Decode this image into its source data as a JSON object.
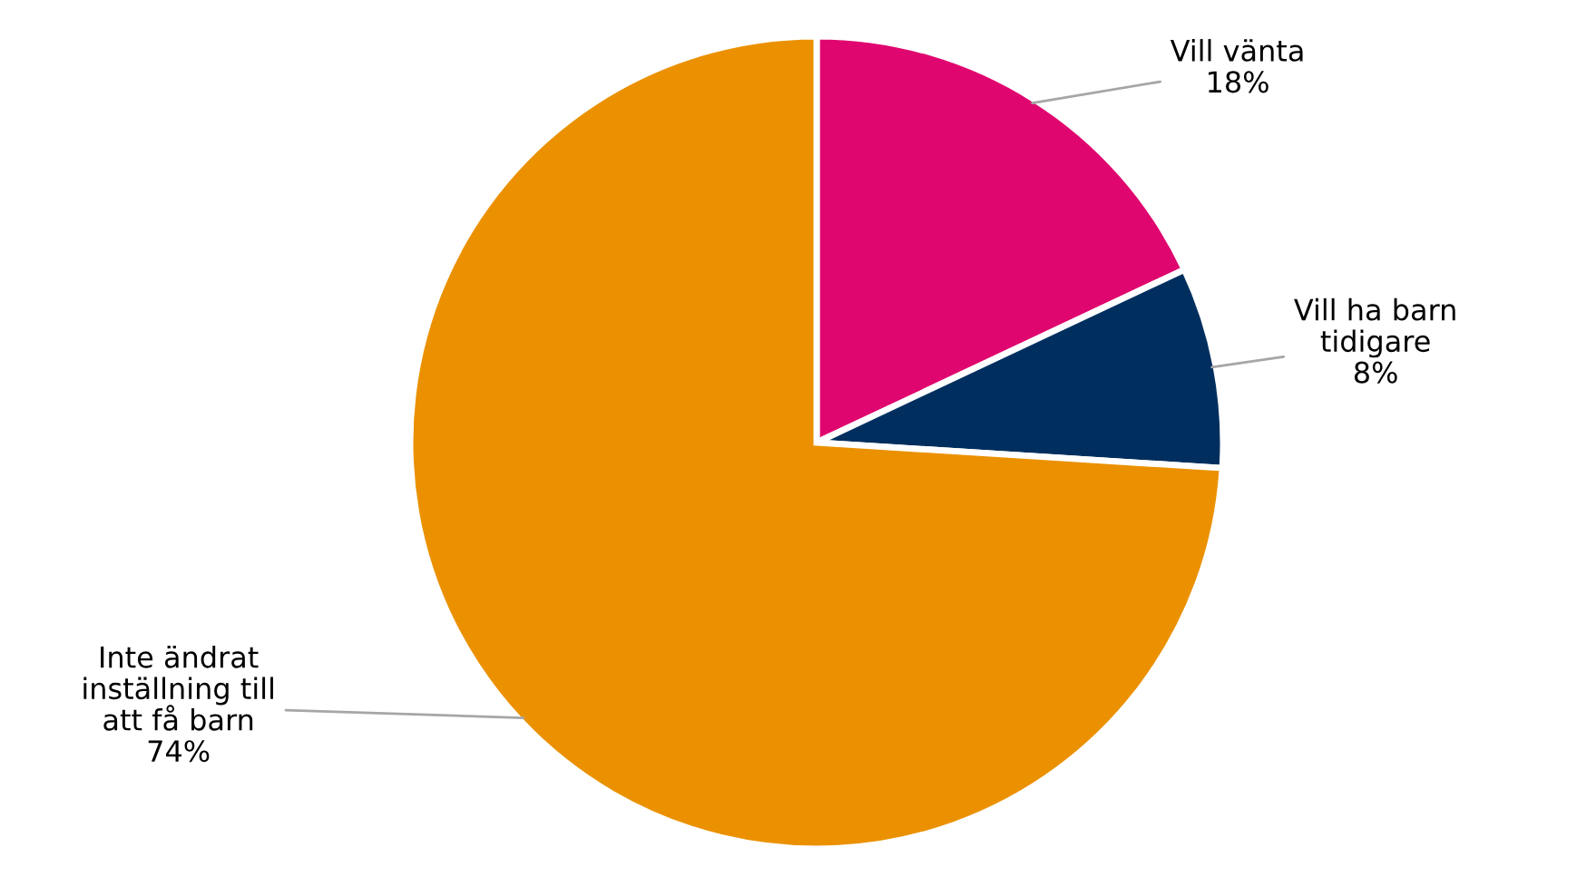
{
  "chart_data": {
    "type": "pie",
    "categories": [
      "Vill vänta",
      "Vill ha barn\ntidigare",
      "Inte ändrat\ninställning till\natt få barn"
    ],
    "values": [
      18,
      8,
      74
    ],
    "colors": [
      "#e0066f",
      "#002f5f",
      "#eb9100"
    ],
    "value_labels": [
      "18%",
      "8%",
      "74%"
    ],
    "legend": false
  }
}
